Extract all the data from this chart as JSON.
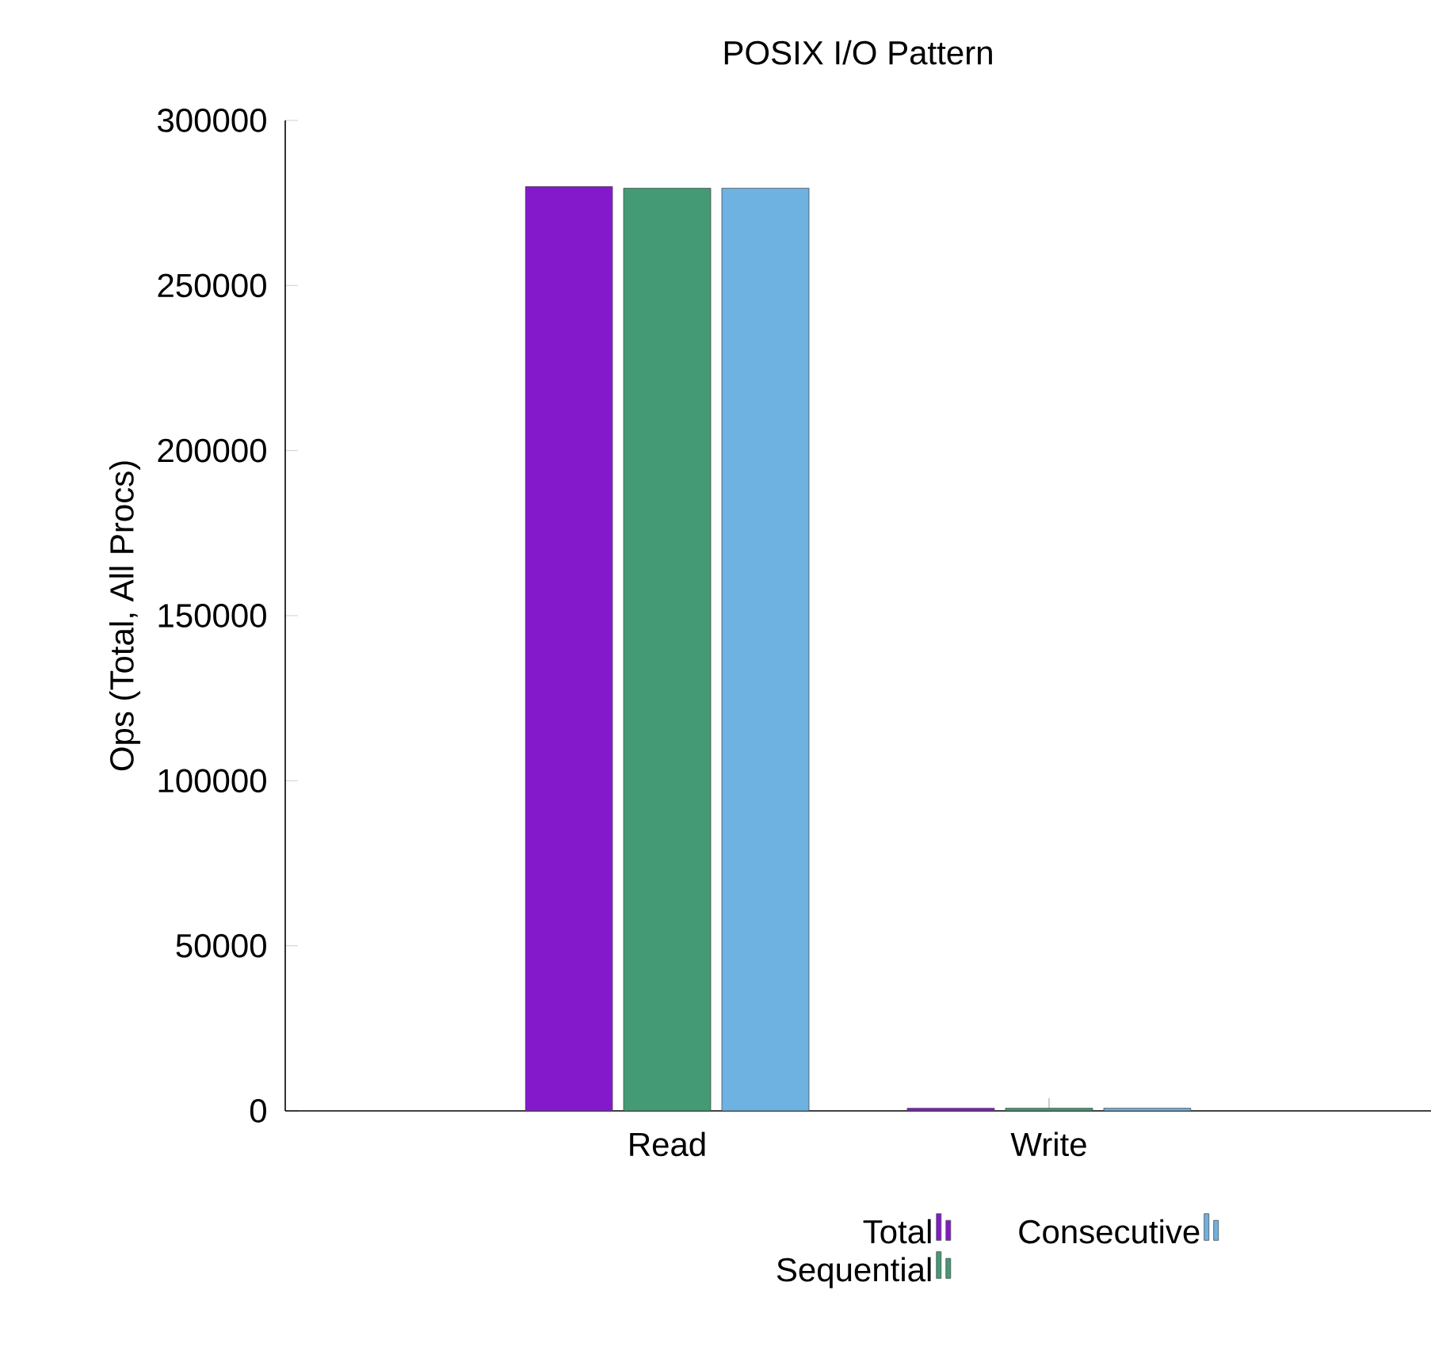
{
  "chart_data": {
    "type": "bar",
    "title": "POSIX I/O Pattern",
    "ylabel": "Ops (Total, All Procs)",
    "categories": [
      "Read",
      "Write"
    ],
    "series": [
      {
        "name": "Total",
        "color": "#8419cc",
        "values": [
          280000,
          800
        ]
      },
      {
        "name": "Sequential",
        "color": "#439a74",
        "values": [
          279500,
          800
        ]
      },
      {
        "name": "Consecutive",
        "color": "#6db2e0",
        "values": [
          279500,
          800
        ]
      }
    ],
    "ylim": [
      0,
      300000
    ],
    "yticks": [
      0,
      50000,
      100000,
      150000,
      200000,
      250000,
      300000
    ],
    "legend": "bottom",
    "grid": false
  }
}
